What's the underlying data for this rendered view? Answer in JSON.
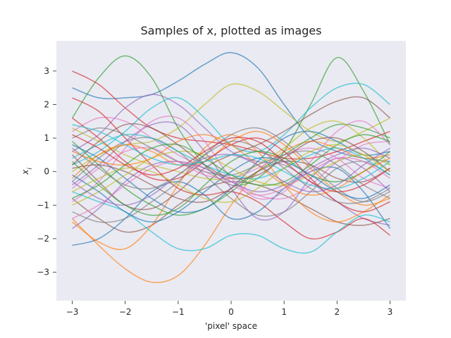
{
  "chart_data": {
    "type": "line",
    "title": "Samples of x, plotted as images",
    "xlabel": "'pixel' space",
    "ylabel": "x_i",
    "xlim": [
      -3.3,
      3.3
    ],
    "ylim": [
      -3.85,
      3.9
    ],
    "x_ticks": [
      -3,
      -2,
      -1,
      0,
      1,
      2,
      3
    ],
    "y_ticks": [
      -3,
      -2,
      -1,
      0,
      1,
      2,
      3
    ],
    "x_tick_labels": [
      "−3",
      "−2",
      "−1",
      "0",
      "1",
      "2",
      "3"
    ],
    "y_tick_labels": [
      "−3",
      "−2",
      "−1",
      "0",
      "1",
      "2",
      "3"
    ],
    "grid": false,
    "background_color": "#eaeaf2",
    "line_alpha": 0.65,
    "colors": [
      "#1f77b4",
      "#ff7f0e",
      "#2ca02c",
      "#d62728",
      "#9467bd",
      "#8c564b",
      "#e377c2",
      "#7f7f7f",
      "#bcbd22",
      "#17becf"
    ],
    "x": [
      -3,
      -2.5,
      -2,
      -1.5,
      -1,
      -0.5,
      0,
      0.5,
      1,
      1.5,
      2,
      2.5,
      3
    ],
    "series": [
      {
        "values": [
          2.5,
          2.2,
          2.2,
          2.3,
          2.7,
          3.2,
          3.55,
          3.1,
          2.0,
          1.0,
          0.6,
          0.4,
          0.3
        ]
      },
      {
        "values": [
          -1.4,
          -2.2,
          -2.9,
          -3.3,
          -3.1,
          -2.2,
          -1.0,
          0.0,
          0.6,
          0.9,
          0.7,
          0.4,
          0.5
        ]
      },
      {
        "values": [
          1.6,
          2.8,
          3.45,
          2.8,
          1.3,
          0.2,
          -0.4,
          -0.2,
          0.6,
          2.0,
          3.4,
          2.4,
          0.8
        ]
      },
      {
        "values": [
          3.0,
          2.6,
          1.9,
          1.3,
          1.0,
          0.9,
          0.8,
          0.6,
          0.4,
          0.4,
          0.6,
          0.9,
          1.2
        ]
      },
      {
        "values": [
          0.6,
          1.1,
          1.9,
          2.3,
          2.0,
          1.3,
          0.6,
          0.3,
          0.2,
          -0.3,
          -0.9,
          -1.4,
          -1.6
        ]
      },
      {
        "values": [
          -0.8,
          -1.4,
          -1.8,
          -1.6,
          -1.0,
          -0.5,
          -0.3,
          -0.4,
          -0.7,
          -1.1,
          -1.5,
          -1.6,
          -1.4
        ]
      },
      {
        "values": [
          1.2,
          1.6,
          1.5,
          1.0,
          0.5,
          0.1,
          -0.3,
          -0.7,
          -0.8,
          -0.4,
          0.3,
          0.8,
          0.9
        ]
      },
      {
        "values": [
          -0.3,
          0.4,
          0.9,
          1.0,
          0.6,
          -0.1,
          -0.8,
          -1.3,
          -1.2,
          -0.6,
          0.1,
          0.3,
          -0.1
        ]
      },
      {
        "values": [
          0.0,
          0.5,
          0.8,
          0.9,
          1.3,
          2.0,
          2.6,
          2.4,
          1.8,
          1.2,
          0.9,
          1.2,
          1.6
        ]
      },
      {
        "values": [
          0.2,
          0.6,
          1.2,
          1.9,
          2.2,
          1.6,
          0.8,
          0.6,
          1.1,
          1.9,
          2.5,
          2.6,
          2.0
        ]
      },
      {
        "values": [
          -2.2,
          -2.0,
          -1.4,
          -0.6,
          -0.3,
          -0.7,
          -1.4,
          -1.2,
          -0.5,
          0.0,
          0.1,
          -0.6,
          -1.7
        ]
      },
      {
        "values": [
          -1.5,
          -2.1,
          -2.3,
          -1.6,
          -0.4,
          0.7,
          1.1,
          0.6,
          -0.4,
          -1.2,
          -1.5,
          -1.2,
          -0.7
        ]
      },
      {
        "values": [
          0.9,
          0.2,
          -0.5,
          -1.0,
          -1.3,
          -1.1,
          -0.6,
          0.0,
          0.5,
          1.0,
          1.4,
          1.3,
          1.0
        ]
      },
      {
        "values": [
          2.2,
          1.8,
          1.0,
          0.2,
          -0.5,
          -0.7,
          -0.6,
          -0.9,
          -1.5,
          -2.0,
          -1.8,
          -1.4,
          -1.9
        ]
      },
      {
        "values": [
          -0.4,
          0.2,
          0.9,
          1.4,
          1.4,
          0.6,
          -0.5,
          -1.4,
          -1.2,
          -0.2,
          0.4,
          0.1,
          -0.6
        ]
      },
      {
        "values": [
          0.5,
          -0.3,
          -1.0,
          -1.1,
          -0.6,
          0.1,
          0.5,
          0.8,
          1.2,
          1.7,
          2.1,
          2.2,
          1.6
        ]
      },
      {
        "values": [
          -0.9,
          -0.3,
          0.7,
          1.5,
          1.6,
          0.9,
          -0.2,
          -0.8,
          -0.6,
          0.3,
          1.2,
          1.5,
          0.8
        ]
      },
      {
        "values": [
          -1.2,
          -1.5,
          -1.4,
          -0.9,
          -0.3,
          0.5,
          1.1,
          1.3,
          0.9,
          0.2,
          -0.5,
          -0.9,
          -0.6
        ]
      },
      {
        "values": [
          1.3,
          0.9,
          0.5,
          0.2,
          0.0,
          -0.2,
          -0.2,
          0.2,
          0.7,
          1.3,
          1.5,
          1.0,
          0.2
        ]
      },
      {
        "values": [
          -0.6,
          -0.9,
          -1.2,
          -1.8,
          -2.3,
          -2.3,
          -1.9,
          -1.9,
          -2.3,
          -2.4,
          -1.8,
          -1.3,
          -1.5
        ]
      },
      {
        "values": [
          0.8,
          0.4,
          -0.2,
          -0.8,
          -1.2,
          -1.1,
          -0.5,
          0.3,
          1.0,
          1.2,
          0.9,
          0.5,
          0.6
        ]
      },
      {
        "values": [
          -0.2,
          0.5,
          0.8,
          0.6,
          0.2,
          0.3,
          0.9,
          1.2,
          0.8,
          0.1,
          -0.6,
          -1.0,
          -0.8
        ]
      },
      {
        "values": [
          0.3,
          -0.4,
          -1.0,
          -1.3,
          -1.1,
          -0.4,
          0.3,
          0.6,
          0.4,
          -0.1,
          -0.3,
          0.0,
          0.6
        ]
      },
      {
        "values": [
          1.6,
          1.0,
          0.3,
          -0.2,
          -0.2,
          0.3,
          0.8,
          1.0,
          0.6,
          -0.2,
          -0.9,
          -1.2,
          -0.9
        ]
      },
      {
        "values": [
          -1.7,
          -1.1,
          -0.3,
          0.2,
          0.3,
          0.1,
          -0.3,
          -0.6,
          -0.4,
          0.1,
          0.5,
          0.7,
          0.4
        ]
      },
      {
        "values": [
          0.1,
          0.2,
          0.0,
          -0.4,
          -0.8,
          -0.9,
          -0.5,
          0.0,
          0.3,
          0.2,
          -0.2,
          -0.3,
          0.1
        ]
      },
      {
        "values": [
          -0.5,
          0.1,
          0.6,
          0.7,
          0.3,
          -0.1,
          -0.2,
          0.1,
          0.5,
          0.7,
          0.4,
          -0.2,
          -0.5
        ]
      },
      {
        "values": [
          1.0,
          1.3,
          1.1,
          0.7,
          0.3,
          0.0,
          -0.1,
          0.2,
          0.5,
          0.6,
          0.2,
          -0.4,
          -0.8
        ]
      },
      {
        "values": [
          -1.0,
          -0.6,
          -0.1,
          0.4,
          0.6,
          0.5,
          0.1,
          -0.3,
          -0.4,
          -0.1,
          0.3,
          0.5,
          0.2
        ]
      },
      {
        "values": [
          0.4,
          0.8,
          1.1,
          1.0,
          0.6,
          0.2,
          -0.1,
          -0.2,
          0.1,
          0.5,
          0.7,
          0.4,
          -0.1
        ]
      },
      {
        "values": [
          -0.1,
          -0.6,
          -1.2,
          -1.5,
          -1.2,
          -0.6,
          0.0,
          0.4,
          0.3,
          -0.1,
          -0.6,
          -0.8,
          -0.4
        ]
      },
      {
        "values": [
          0.6,
          0.3,
          0.2,
          0.4,
          0.9,
          1.1,
          0.8,
          0.2,
          -0.4,
          -0.7,
          -0.5,
          0.0,
          0.4
        ]
      },
      {
        "values": [
          -0.8,
          -0.4,
          0.2,
          0.7,
          0.8,
          0.4,
          -0.1,
          -0.4,
          -0.3,
          0.2,
          0.8,
          1.1,
          0.9
        ]
      },
      {
        "values": [
          1.1,
          0.7,
          0.2,
          -0.1,
          0.1,
          0.6,
          1.0,
          0.9,
          0.3,
          -0.3,
          -0.6,
          -0.4,
          0.1
        ]
      },
      {
        "values": [
          -0.3,
          -0.8,
          -1.0,
          -0.7,
          -0.1,
          0.4,
          0.5,
          0.2,
          -0.3,
          -0.6,
          -0.4,
          0.2,
          0.7
        ]
      },
      {
        "values": [
          0.2,
          0.9,
          1.4,
          1.3,
          0.8,
          0.2,
          -0.2,
          -0.1,
          0.4,
          0.9,
          1.0,
          0.6,
          0.0
        ]
      },
      {
        "values": [
          -1.4,
          -1.0,
          -0.4,
          0.1,
          0.3,
          0.0,
          -0.4,
          -0.7,
          -0.5,
          0.0,
          0.4,
          0.3,
          -0.2
        ]
      },
      {
        "values": [
          0.7,
          0.1,
          -0.4,
          -0.5,
          -0.1,
          0.5,
          0.9,
          0.7,
          0.1,
          -0.5,
          -0.9,
          -0.9,
          -0.5
        ]
      },
      {
        "values": [
          -0.6,
          -0.2,
          0.1,
          0.0,
          -0.4,
          -0.8,
          -0.9,
          -0.5,
          0.1,
          0.6,
          0.8,
          0.5,
          0.0
        ]
      },
      {
        "values": [
          1.4,
          1.2,
          0.8,
          0.4,
          0.2,
          0.3,
          0.5,
          0.4,
          0.0,
          -0.4,
          -0.5,
          -0.2,
          0.3
        ]
      }
    ]
  }
}
